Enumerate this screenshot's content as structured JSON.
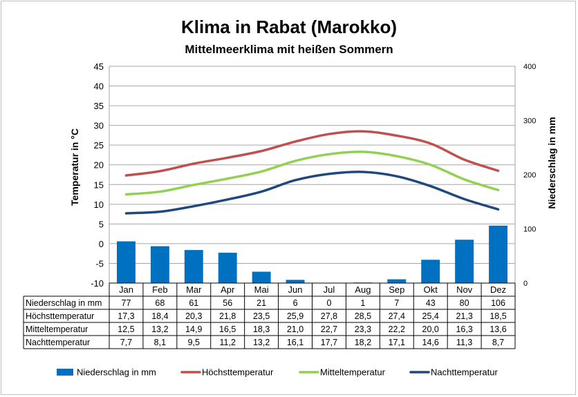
{
  "chart_data": {
    "type": "bar-line-combo",
    "title": "Klima in Rabat (Marokko)",
    "subtitle": "Mittelmeerklima mit heißen Sommern",
    "categories": [
      "Jan",
      "Feb",
      "Mar",
      "Apr",
      "Mai",
      "Jun",
      "Jul",
      "Aug",
      "Sep",
      "Okt",
      "Nov",
      "Dez"
    ],
    "y_left": {
      "label": "Temperatur in °C",
      "range": [
        -10,
        45
      ],
      "ticks": [
        45,
        40,
        35,
        30,
        25,
        20,
        15,
        10,
        5,
        0,
        -5,
        -10
      ]
    },
    "y_right": {
      "label": "Niederschlag in mm",
      "range": [
        0,
        400
      ],
      "ticks": [
        400,
        300,
        200,
        100,
        0
      ]
    },
    "grid": true,
    "legend_position": "bottom",
    "series": [
      {
        "name": "Niederschlag in mm",
        "kind": "bar",
        "axis": "right",
        "color": "#0070c0",
        "values": [
          77,
          68,
          61,
          56,
          21,
          6,
          0,
          1,
          7,
          43,
          80,
          106
        ],
        "labels": [
          "77",
          "68",
          "61",
          "56",
          "21",
          "6",
          "0",
          "1",
          "7",
          "43",
          "80",
          "106"
        ]
      },
      {
        "name": "Höchsttemperatur",
        "kind": "line",
        "axis": "left",
        "color": "#c0504d",
        "values": [
          17.3,
          18.4,
          20.3,
          21.8,
          23.5,
          25.9,
          27.8,
          28.5,
          27.4,
          25.4,
          21.3,
          18.5
        ],
        "labels": [
          "17,3",
          "18,4",
          "20,3",
          "21,8",
          "23,5",
          "25,9",
          "27,8",
          "28,5",
          "27,4",
          "25,4",
          "21,3",
          "18,5"
        ]
      },
      {
        "name": "Mitteltemperatur",
        "kind": "line",
        "axis": "left",
        "color": "#92d050",
        "values": [
          12.5,
          13.2,
          14.9,
          16.5,
          18.3,
          21.0,
          22.7,
          23.3,
          22.2,
          20.0,
          16.3,
          13.6
        ],
        "labels": [
          "12,5",
          "13,2",
          "14,9",
          "16,5",
          "18,3",
          "21,0",
          "22,7",
          "23,3",
          "22,2",
          "20,0",
          "16,3",
          "13,6"
        ]
      },
      {
        "name": "Nachttemperatur",
        "kind": "line",
        "axis": "left",
        "color": "#1f497d",
        "values": [
          7.7,
          8.1,
          9.5,
          11.2,
          13.2,
          16.1,
          17.7,
          18.2,
          17.1,
          14.6,
          11.3,
          8.7
        ],
        "labels": [
          "7,7",
          "8,1",
          "9,5",
          "11,2",
          "13,2",
          "16,1",
          "17,7",
          "18,2",
          "17,1",
          "14,6",
          "11,3",
          "8,7"
        ]
      }
    ]
  }
}
